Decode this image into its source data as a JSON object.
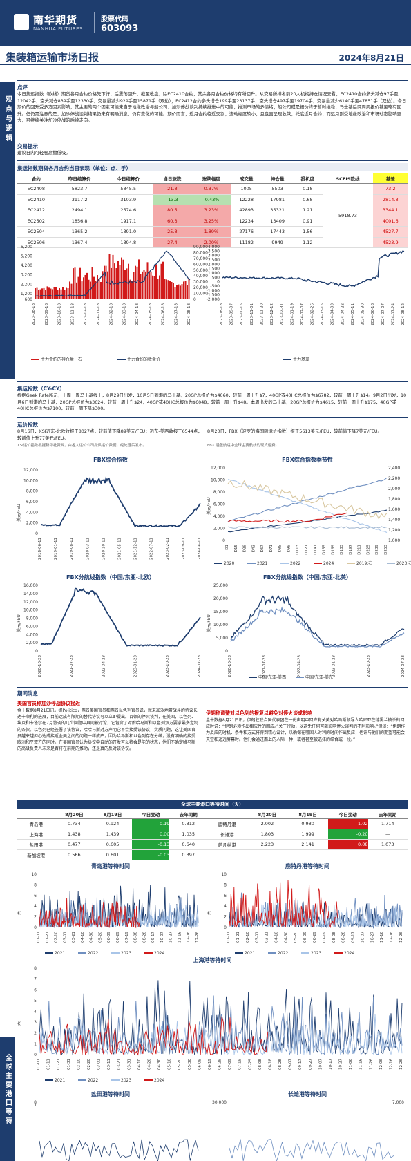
{
  "header": {
    "logo_cn": "南华期货",
    "logo_en": "NANHUA FUTURES",
    "code_label": "股票代码",
    "code": "603093",
    "title": "集装箱运输市场日报",
    "date": "2024年8月21日"
  },
  "side": {
    "a": "观点与逻辑",
    "b": "全球主要港口等待"
  },
  "comment": {
    "head": "点评",
    "text": "今日集运指数（欧线）期货各月合约价格先下行，后震荡回升，截至收盘，除EC2410合约，其余各月合约价格均有所回升。从交易所排名前20大机构持仓情况去看，EC2410合约多头减仓97手至12042手，空头减仓839手至12330手，交易量减少929手至15871手（双边）；EC2412合约多头增仓199手至23137手，空头增仓497手至19704手，交易量减少6140手至47851手（双边）。今日期价的回升受多方因素影响，其主要的两个因素可能来自于地缘政治与船公司：加沙停战谈判持续推进中的可能，推测市场的多情绪；船公司或是报价终于暂时维稳，马士基后两周周报价甚至略有回升。但仍需注意的是，加沙停战谈判结果仍未有明确消息，仍有变化的可能。期价而言，近月合约临近交割，波动幅度较小，且盘面呈现收敛，托底近月合约；而远月则受地缘政治和市场动态影响更大，可继续关注加沙停战的后续走向。"
  },
  "tips": {
    "head": "交易提示",
    "text": "建议日内可轻仓高抛低吸。"
  },
  "futures": {
    "head": "集运指数期货各月合约当日表现（单位：点、手）",
    "cols": [
      "合约",
      "昨日结算价",
      "今日结算价",
      "当日涨跌",
      "涨跌幅度",
      "成交量",
      "持仓量",
      "投机度",
      "SCFIS欧线",
      "基差"
    ],
    "scfis": "5918.73",
    "rows": [
      [
        "EC2408",
        "5823.7",
        "5845.5",
        "21.8",
        "0.37%",
        "1005",
        "5503",
        "0.18",
        "73.2"
      ],
      [
        "EC2410",
        "3117.2",
        "3103.9",
        "-13.3",
        "-0.43%",
        "12228",
        "17981",
        "0.68",
        "2814.8"
      ],
      [
        "EC2412",
        "2494.1",
        "2574.6",
        "80.5",
        "3.23%",
        "42893",
        "35321",
        "1.21",
        "3344.1"
      ],
      [
        "EC2502",
        "1856.8",
        "1917.1",
        "60.3",
        "3.25%",
        "12234",
        "13409",
        "0.91",
        "4001.6"
      ],
      [
        "EC2504",
        "1365.2",
        "1391.0",
        "25.8",
        "1.89%",
        "27176",
        "17443",
        "1.56",
        "4527.7"
      ],
      [
        "EC2506",
        "1367.4",
        "1394.8",
        "27.4",
        "2.00%",
        "11182",
        "9949",
        "1.12",
        "4523.9"
      ]
    ]
  },
  "chart1": {
    "legend": [
      "主力合约的持仓量：右",
      "主力合约的收盘价"
    ]
  },
  "chart2": {
    "legend": "主力基差"
  },
  "cycy": {
    "head": "集运指数（CY-CY）",
    "text": "根据Geek Rate所示，上周一周马士基线上，8月29日出发，10月5日到港的马士基，20GP总报价为$4060，较前一周上升$7，40GP或40HC总报价为$6782，较前一周上升$14。9月2日出发，10月6日到港的马士基，20GP总报价为$3624，较前一周上升$24，40GP或40HC总报价为$6048，较前一周上升$48。本周出发的马士基，20GP总报价为$4615，较前一周上升$175，40GP或40HC总报价为$7100，较前一周下降$300。"
  },
  "index": {
    "head": "运价指数",
    "left": "8月16日，XSI远东-北欧收报于8027点，较前值下降89美元/FEU；远东-美西收报于6544点，较前值上升77美元/FEU。",
    "left_note": "XSI运价指数根据新华社资料，由各大运价公司提供运价数据，经处理后发布。",
    "right": "8月20日，FBX（波罗的海国际运价指数）报于5613美元/FEU，较前值下降7美元/FEU。",
    "right_note": "FBX 涵盖航运中全球主要航线的现货运费。"
  },
  "fbx": {
    "t1": "FBX综合指数",
    "t2": "FBX综合指数季节性",
    "t3": "FBX分航线指数（中国/东亚-北欧）",
    "t4": "FBX分航线指数（中国/东亚-北美）",
    "ylabel": "美元/FEU",
    "seasonal_legend": [
      "2020",
      "2021",
      "2022",
      "2024",
      "2019:右",
      "2023:右"
    ],
    "t4_legend": [
      "中国/东亚-美西",
      "中国/东亚-美东"
    ]
  },
  "news": {
    "head": "期间消息",
    "l_title": "美国官员称加沙停战协议接近",
    "l_text": "金十数据8月21日讯，据Politico，两名美国官员和两名以色列官员说，就来加沙地带战斗的协议长达十顺利的进展，目前达成有限期的替代协议可以立即提出。百顿的停火谈判，在美国，以色列、埃及和卡塔尔在7月协调的几个问题中具同被讨论，它包含了对附哈马斯和以色列双方要求最多定制的条款。以色列已经签署了该协议，哈哈马斯对方声明它不会接受该协议，实质问题，这让美国官员越来越担心达成接近全美之间的问题一样成产，因为哈马斯和以色列存在分歧，没有明确的接受欧洲和平双方的同时。在美国官员认为协议中自动的开发可以将会是能的状态，他们不确定哈马斯的高级负责人未来是否将在前期的推动，还是真的反对该协议。",
    "r_title": "伊朗称调整对以色列的报复以避免对停火谈成影响",
    "r_text": "金十数据8月21日讯，伊朗驻联合国代表团在一份声明中回应有关美对哈马斯领导人哈尼亚在德黑兰被杀的回应时说：“伊朗必须作出相应性的回应。”关于行动，以避免任何可能影响停火谈判的不利影响。”但谈：“伊朗作为反应的时机、条件和方式将得到精心设计，以确保在哪国人对利的时间作出反应；也许与他们的期望可能会天空和遥远屏幕时。他们会通过而上的人际一种，或者甚至被选择的结合或一段。”"
  },
  "ports": {
    "head": "全球主要港口等待时间（天）",
    "cols": [
      "",
      "8月20日",
      "8月19日",
      "今日变动",
      "去年同期"
    ],
    "left": [
      [
        "青岛港",
        "0.734",
        "0.924",
        "-0.19",
        "0.312"
      ],
      [
        "上海港",
        "1.438",
        "1.439",
        "0.00",
        "1.035"
      ],
      [
        "盐田港",
        "0.477",
        "0.605",
        "-0.13",
        "0.640"
      ],
      [
        "新加坡港",
        "0.566",
        "0.601",
        "-0.03",
        "0.397"
      ]
    ],
    "right": [
      [
        "鹿特丹港",
        "2.002",
        "0.980",
        "1.02",
        "1.714"
      ],
      [
        "长滩港",
        "1.803",
        "1.999",
        "-0.20",
        "—"
      ],
      [
        "萨凡纳港",
        "2.223",
        "2.141",
        "0.08",
        "1.073"
      ]
    ]
  },
  "port_charts": {
    "t1": "青岛港等待时间",
    "t2": "鹿特丹港等待时间",
    "t3": "上海港等待时间",
    "t4": "盐田港等待时间",
    "t5": "长滩港等待时间",
    "legend": [
      "2021",
      "2022",
      "2023",
      "2024"
    ],
    "ylabel": "天"
  },
  "colors": {
    "navy": "#1e3d6e",
    "red": "#d11a1a",
    "green": "#22a33a",
    "y2021": "#1e3d6e",
    "y2022": "#6f8fc0",
    "y2023": "#a9c5e8",
    "y2024": "#d11a1a"
  }
}
